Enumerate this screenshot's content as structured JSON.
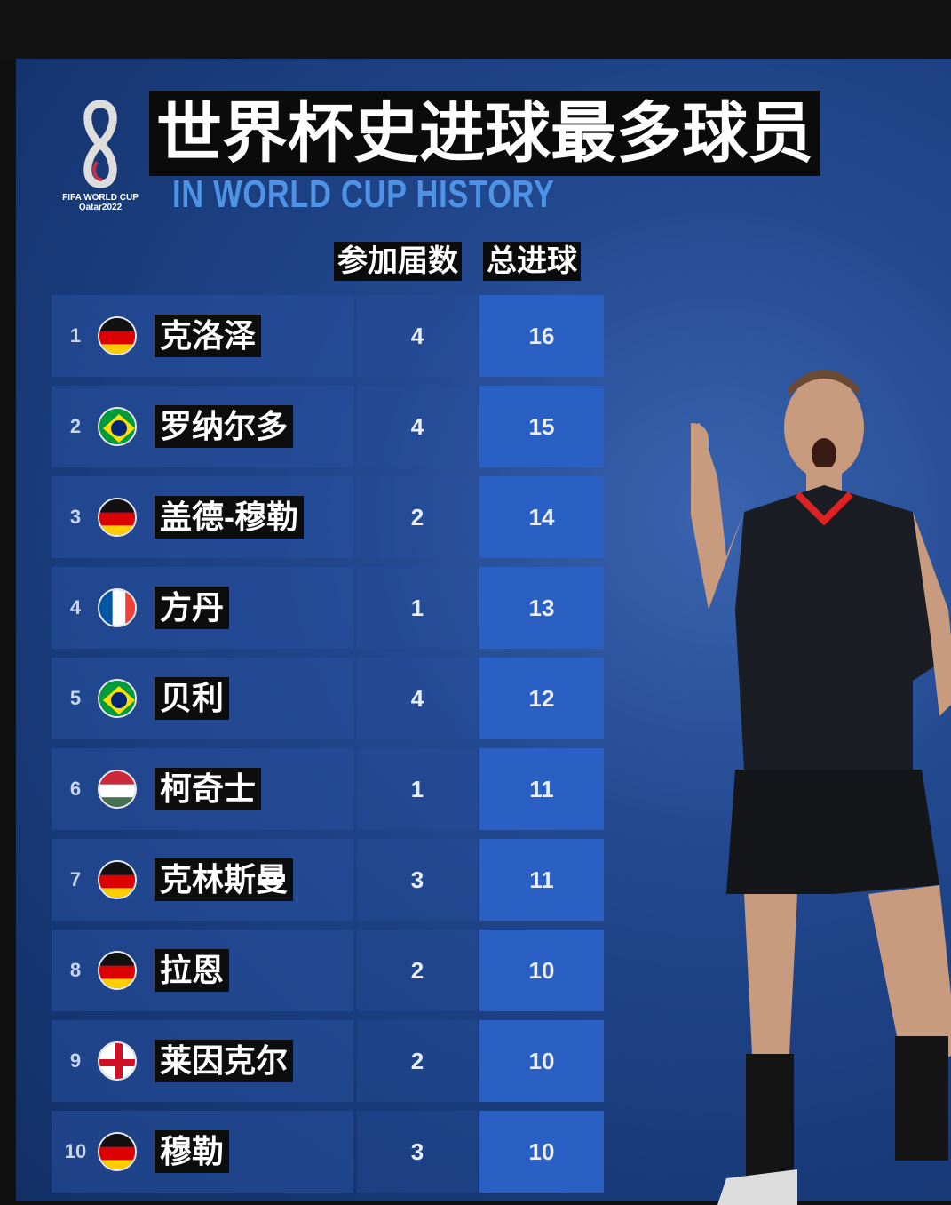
{
  "logo": {
    "line1": "FIFA WORLD CUP",
    "line2": "Qatar2022"
  },
  "title": "世界杯史进球最多球员",
  "subtitle": "IN WORLD CUP HISTORY",
  "headers": {
    "appearances": "参加届数",
    "goals": "总进球"
  },
  "rows": [
    {
      "rank": "1",
      "flag": "germany",
      "name": "克洛泽",
      "appearances": "4",
      "goals": "16"
    },
    {
      "rank": "2",
      "flag": "brazil",
      "name": "罗纳尔多",
      "appearances": "4",
      "goals": "15"
    },
    {
      "rank": "3",
      "flag": "germany",
      "name": "盖德-穆勒",
      "appearances": "2",
      "goals": "14"
    },
    {
      "rank": "4",
      "flag": "france",
      "name": "方丹",
      "appearances": "1",
      "goals": "13"
    },
    {
      "rank": "5",
      "flag": "brazil",
      "name": "贝利",
      "appearances": "4",
      "goals": "12"
    },
    {
      "rank": "6",
      "flag": "hungary",
      "name": "柯奇士",
      "appearances": "1",
      "goals": "11"
    },
    {
      "rank": "7",
      "flag": "germany",
      "name": "克林斯曼",
      "appearances": "3",
      "goals": "11"
    },
    {
      "rank": "8",
      "flag": "germany",
      "name": "拉恩",
      "appearances": "2",
      "goals": "10"
    },
    {
      "rank": "9",
      "flag": "england",
      "name": "莱因克尔",
      "appearances": "2",
      "goals": "10"
    },
    {
      "rank": "10",
      "flag": "germany",
      "name": "穆勒",
      "appearances": "3",
      "goals": "10"
    }
  ],
  "colors": {
    "background": "#1d418a",
    "goals_cell": "#2a5fc4",
    "subtitle": "#4f93e6"
  }
}
